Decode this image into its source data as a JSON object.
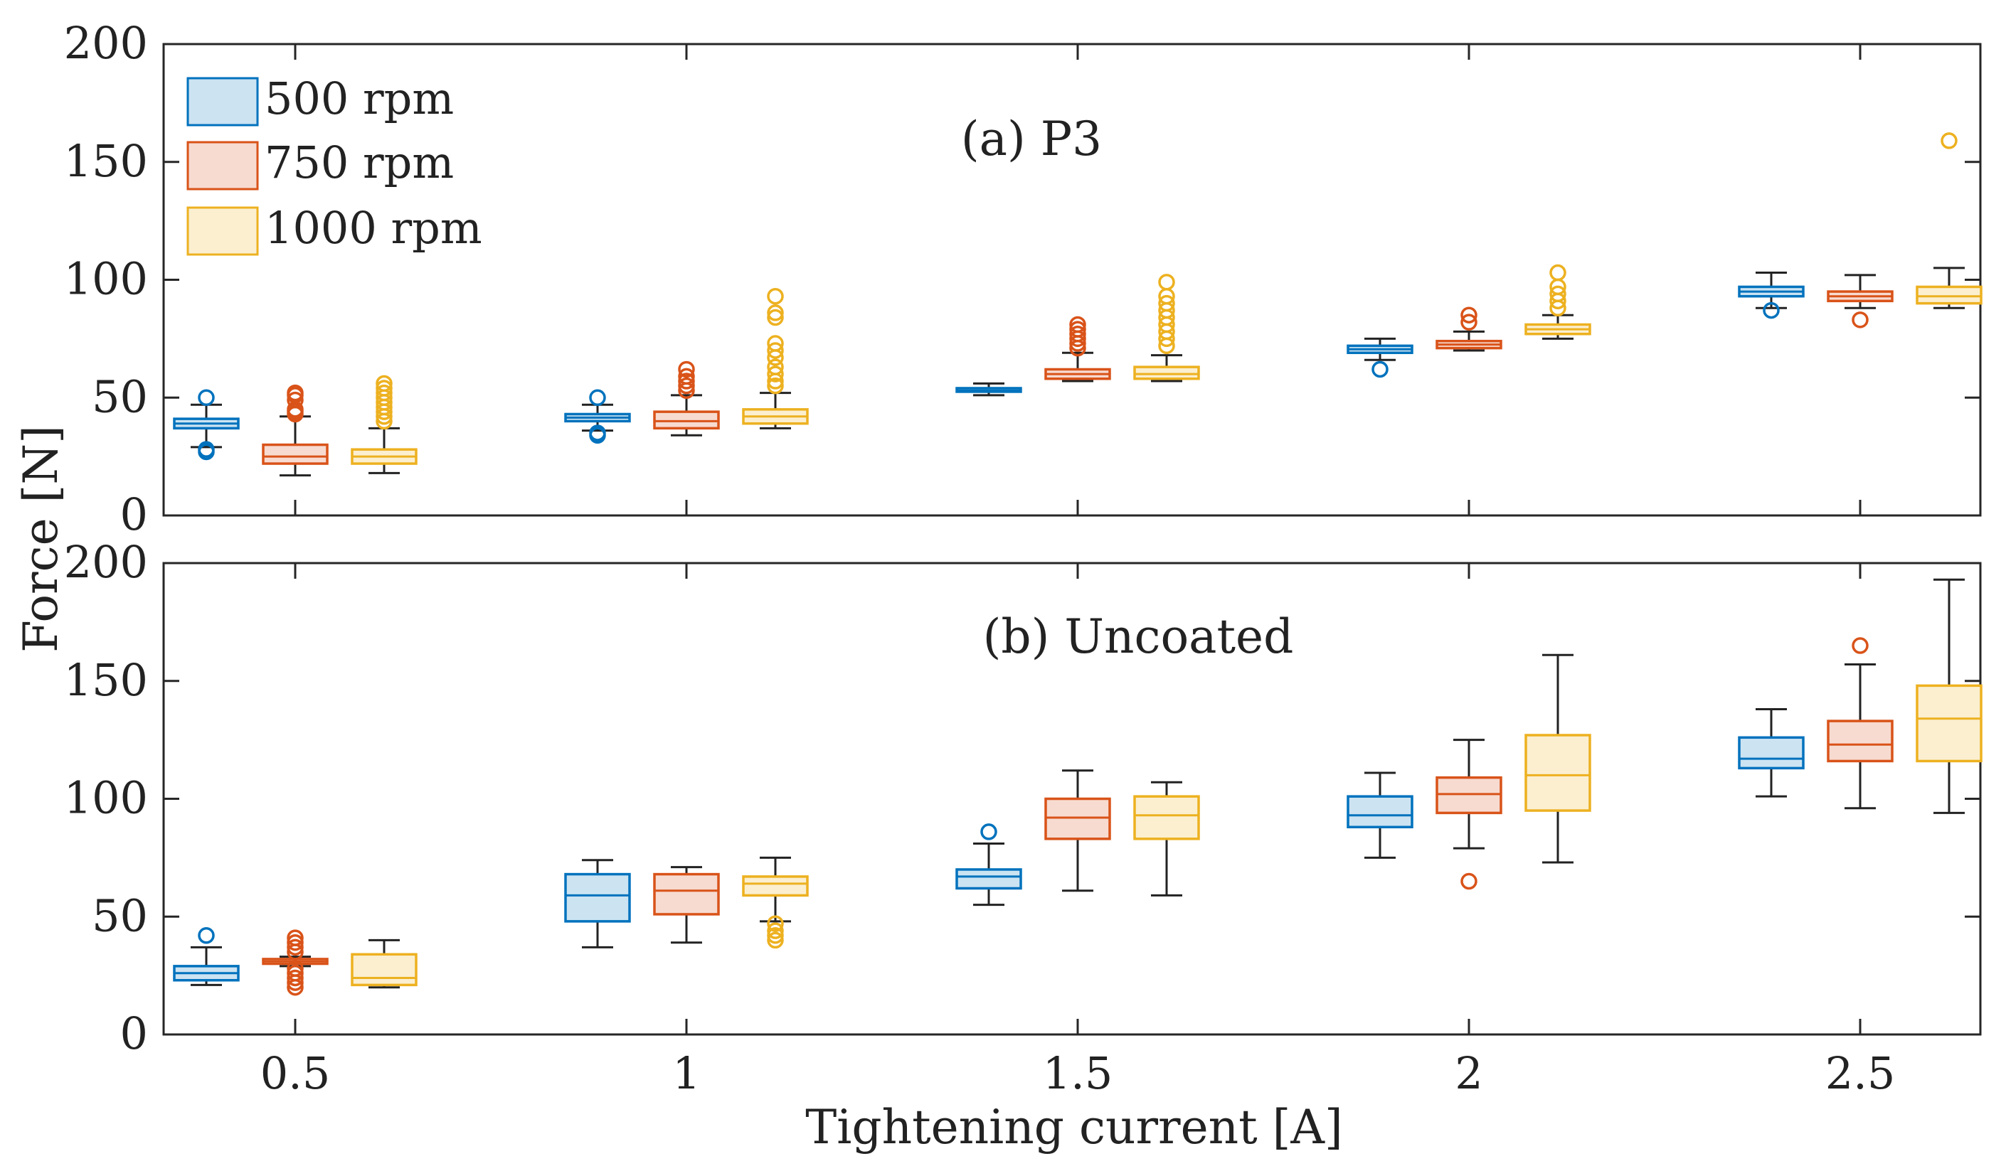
{
  "chart_data": {
    "type": "boxplot",
    "xlabel": "Tightening current [A]",
    "ylabel": "Force [N]",
    "categories": [
      "0.5",
      "1",
      "1.5",
      "2",
      "2.5"
    ],
    "ylim": [
      0,
      200
    ],
    "yticks": [
      0,
      50,
      100,
      150,
      200
    ],
    "legend": {
      "placement": "top-left",
      "entries": [
        "500 rpm",
        "750 rpm",
        "1000 rpm"
      ]
    },
    "series_colors": {
      "500 rpm": {
        "stroke": "#0072BD",
        "fill": "#cce3f2"
      },
      "750 rpm": {
        "stroke": "#D95319",
        "fill": "#f7dbd0"
      },
      "1000 rpm": {
        "stroke": "#EDB120",
        "fill": "#fbefd0"
      }
    },
    "whisker_color": "#222222",
    "panels": [
      {
        "id": "a",
        "title": "(a) P3",
        "boxes": [
          {
            "category": "0.5",
            "series": "500 rpm",
            "q1": 37,
            "median": 39,
            "q3": 41,
            "whisker_low": 29,
            "whisker_high": 47,
            "outliers": [
              27,
              28,
              50
            ]
          },
          {
            "category": "0.5",
            "series": "750 rpm",
            "q1": 22,
            "median": 25,
            "q3": 30,
            "whisker_low": 17,
            "whisker_high": 42,
            "outliers": [
              43,
              44,
              45,
              49,
              51,
              52
            ]
          },
          {
            "category": "0.5",
            "series": "1000 rpm",
            "q1": 22,
            "median": 25,
            "q3": 28,
            "whisker_low": 18,
            "whisker_high": 37,
            "outliers": [
              40,
              42,
              44,
              46,
              48,
              50,
              52,
              54,
              56
            ]
          },
          {
            "category": "1",
            "series": "500 rpm",
            "q1": 40,
            "median": 41.5,
            "q3": 43,
            "whisker_low": 36,
            "whisker_high": 47,
            "outliers": [
              34,
              35,
              50
            ]
          },
          {
            "category": "1",
            "series": "750 rpm",
            "q1": 37,
            "median": 40,
            "q3": 44,
            "whisker_low": 34,
            "whisker_high": 51,
            "outliers": [
              53,
              55,
              57,
              59,
              62
            ]
          },
          {
            "category": "1",
            "series": "1000 rpm",
            "q1": 39,
            "median": 42,
            "q3": 45,
            "whisker_low": 37,
            "whisker_high": 52,
            "outliers": [
              55,
              57,
              60,
              63,
              67,
              70,
              73,
              84,
              86,
              93
            ]
          },
          {
            "category": "1.5",
            "series": "500 rpm",
            "q1": 52.5,
            "median": 53,
            "q3": 54,
            "whisker_low": 51,
            "whisker_high": 56,
            "outliers": []
          },
          {
            "category": "1.5",
            "series": "750 rpm",
            "q1": 58,
            "median": 60,
            "q3": 62,
            "whisker_low": 57,
            "whisker_high": 69,
            "outliers": [
              71,
              73,
              75,
              77,
              79,
              81
            ]
          },
          {
            "category": "1.5",
            "series": "1000 rpm",
            "q1": 58,
            "median": 60,
            "q3": 63,
            "whisker_low": 57,
            "whisker_high": 68,
            "outliers": [
              72,
              75,
              78,
              81,
              84,
              87,
              90,
              93,
              99
            ]
          },
          {
            "category": "2",
            "series": "500 rpm",
            "q1": 69,
            "median": 70.5,
            "q3": 72,
            "whisker_low": 66,
            "whisker_high": 75,
            "outliers": [
              62
            ]
          },
          {
            "category": "2",
            "series": "750 rpm",
            "q1": 71,
            "median": 72.5,
            "q3": 74,
            "whisker_low": 70,
            "whisker_high": 78,
            "outliers": [
              82,
              85
            ]
          },
          {
            "category": "2",
            "series": "1000 rpm",
            "q1": 77,
            "median": 79,
            "q3": 81,
            "whisker_low": 75,
            "whisker_high": 85,
            "outliers": [
              88,
              91,
              94,
              97,
              103
            ]
          },
          {
            "category": "2.5",
            "series": "500 rpm",
            "q1": 93,
            "median": 95,
            "q3": 97,
            "whisker_low": 88,
            "whisker_high": 103,
            "outliers": [
              87
            ]
          },
          {
            "category": "2.5",
            "series": "750 rpm",
            "q1": 91,
            "median": 93,
            "q3": 95,
            "whisker_low": 88,
            "whisker_high": 102,
            "outliers": [
              83
            ]
          },
          {
            "category": "2.5",
            "series": "1000 rpm",
            "q1": 90,
            "median": 93,
            "q3": 97,
            "whisker_low": 88,
            "whisker_high": 105,
            "outliers": [
              159
            ]
          }
        ]
      },
      {
        "id": "b",
        "title": "(b) Uncoated",
        "boxes": [
          {
            "category": "0.5",
            "series": "500 rpm",
            "q1": 23,
            "median": 26,
            "q3": 29,
            "whisker_low": 21,
            "whisker_high": 37,
            "outliers": [
              42
            ]
          },
          {
            "category": "0.5",
            "series": "750 rpm",
            "q1": 30,
            "median": 31,
            "q3": 32,
            "whisker_low": 29,
            "whisker_high": 33,
            "outliers": [
              20,
              22,
              24,
              26,
              28,
              35,
              37,
              39,
              41
            ]
          },
          {
            "category": "0.5",
            "series": "1000 rpm",
            "q1": 21,
            "median": 24,
            "q3": 34,
            "whisker_low": 20,
            "whisker_high": 40,
            "outliers": []
          },
          {
            "category": "1",
            "series": "500 rpm",
            "q1": 48,
            "median": 59,
            "q3": 68,
            "whisker_low": 37,
            "whisker_high": 74,
            "outliers": []
          },
          {
            "category": "1",
            "series": "750 rpm",
            "q1": 51,
            "median": 61,
            "q3": 68,
            "whisker_low": 39,
            "whisker_high": 71,
            "outliers": []
          },
          {
            "category": "1",
            "series": "1000 rpm",
            "q1": 59,
            "median": 64,
            "q3": 67,
            "whisker_low": 48,
            "whisker_high": 75,
            "outliers": [
              40,
              42,
              44,
              47
            ]
          },
          {
            "category": "1.5",
            "series": "500 rpm",
            "q1": 62,
            "median": 67,
            "q3": 70,
            "whisker_low": 55,
            "whisker_high": 81,
            "outliers": [
              86
            ]
          },
          {
            "category": "1.5",
            "series": "750 rpm",
            "q1": 83,
            "median": 92,
            "q3": 100,
            "whisker_low": 61,
            "whisker_high": 112,
            "outliers": []
          },
          {
            "category": "1.5",
            "series": "1000 rpm",
            "q1": 83,
            "median": 93,
            "q3": 101,
            "whisker_low": 59,
            "whisker_high": 107,
            "outliers": []
          },
          {
            "category": "2",
            "series": "500 rpm",
            "q1": 88,
            "median": 93,
            "q3": 101,
            "whisker_low": 75,
            "whisker_high": 111,
            "outliers": []
          },
          {
            "category": "2",
            "series": "750 rpm",
            "q1": 94,
            "median": 102,
            "q3": 109,
            "whisker_low": 79,
            "whisker_high": 125,
            "outliers": [
              65
            ]
          },
          {
            "category": "2",
            "series": "1000 rpm",
            "q1": 95,
            "median": 110,
            "q3": 127,
            "whisker_low": 73,
            "whisker_high": 161,
            "outliers": []
          },
          {
            "category": "2.5",
            "series": "500 rpm",
            "q1": 113,
            "median": 117,
            "q3": 126,
            "whisker_low": 101,
            "whisker_high": 138,
            "outliers": []
          },
          {
            "category": "2.5",
            "series": "750 rpm",
            "q1": 116,
            "median": 123,
            "q3": 133,
            "whisker_low": 96,
            "whisker_high": 157,
            "outliers": [
              165
            ]
          },
          {
            "category": "2.5",
            "series": "1000 rpm",
            "q1": 116,
            "median": 134,
            "q3": 148,
            "whisker_low": 94,
            "whisker_high": 193,
            "outliers": []
          }
        ]
      }
    ]
  }
}
